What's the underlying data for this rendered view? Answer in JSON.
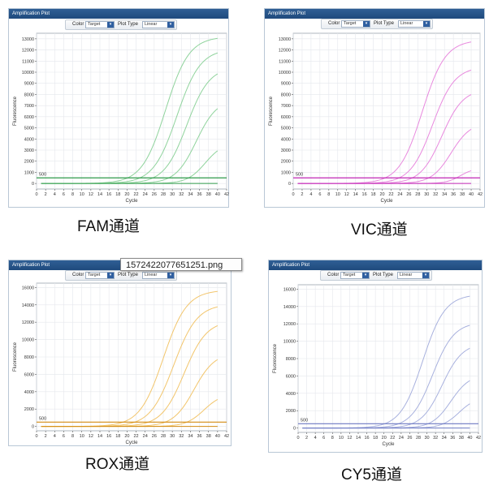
{
  "panels": [
    {
      "id": "fam",
      "window_title": "Amplification Plot",
      "caption": "FAM通道",
      "toolbar": {
        "color_label": "Color",
        "color_value": "Target",
        "plot_type_label": "Plot Type",
        "plot_type_value": "Linear"
      },
      "chart_data": {
        "type": "line",
        "title": "",
        "xlabel": "Cycle",
        "ylabel": "Fluorescence",
        "xlim": [
          0,
          42
        ],
        "ylim": [
          -500,
          13500
        ],
        "x_ticks": [
          0,
          2,
          4,
          6,
          8,
          10,
          12,
          14,
          16,
          18,
          20,
          22,
          24,
          26,
          28,
          30,
          32,
          34,
          36,
          38,
          40,
          42
        ],
        "x_tick_labels": [
          "0",
          "2",
          "4",
          "6",
          "8",
          "10",
          "12",
          "14",
          "16",
          "18",
          "20",
          "22",
          "24",
          "26",
          "28",
          "30",
          "32",
          "34",
          "36",
          "38",
          "40",
          "42"
        ],
        "y_ticks": [
          0,
          1000,
          2000,
          3000,
          4000,
          5000,
          6000,
          7000,
          8000,
          9000,
          10000,
          11000,
          12000,
          13000
        ],
        "y_tick_labels": [
          "0",
          "1000",
          "2000",
          "3000",
          "4000",
          "5000",
          "6000",
          "7000",
          "8000",
          "9000",
          "10000",
          "11000",
          "12000",
          "13000"
        ],
        "threshold": 500,
        "threshold_label": "500",
        "curve_color": "#8fd39c",
        "threshold_color": "#2e9a4a",
        "grid": true,
        "series": [
          {
            "name": "curve-1",
            "x_start": 1,
            "x_end": 40,
            "plateau": 13200,
            "midpoint": 28.5,
            "slope": 2.6
          },
          {
            "name": "curve-2",
            "x_start": 1,
            "x_end": 40,
            "plateau": 12100,
            "midpoint": 31.0,
            "slope": 2.6
          },
          {
            "name": "curve-3",
            "x_start": 1,
            "x_end": 40,
            "plateau": 10500,
            "midpoint": 33.2,
            "slope": 2.5
          },
          {
            "name": "curve-4",
            "x_start": 1,
            "x_end": 40,
            "plateau": 7600,
            "midpoint": 35.3,
            "slope": 2.3
          },
          {
            "name": "curve-5",
            "x_start": 1,
            "x_end": 40,
            "plateau": 3700,
            "midpoint": 37.3,
            "slope": 2.0
          }
        ]
      }
    },
    {
      "id": "vic",
      "window_title": "Amplification Plot",
      "caption": "VIC通道",
      "toolbar": {
        "color_label": "Color",
        "color_value": "Target",
        "plot_type_label": "Plot Type",
        "plot_type_value": "Linear"
      },
      "chart_data": {
        "type": "line",
        "title": "",
        "xlabel": "Cycle",
        "ylabel": "Fluorescence",
        "xlim": [
          0,
          42
        ],
        "ylim": [
          -500,
          13500
        ],
        "x_ticks": [
          0,
          2,
          4,
          6,
          8,
          10,
          12,
          14,
          16,
          18,
          20,
          22,
          24,
          26,
          28,
          30,
          32,
          34,
          36,
          38,
          40,
          42
        ],
        "x_tick_labels": [
          "0",
          "2",
          "4",
          "6",
          "8",
          "10",
          "12",
          "14",
          "16",
          "18",
          "20",
          "22",
          "24",
          "26",
          "28",
          "30",
          "32",
          "34",
          "36",
          "38",
          "40",
          "42"
        ],
        "y_ticks": [
          0,
          1000,
          2000,
          3000,
          4000,
          5000,
          6000,
          7000,
          8000,
          9000,
          10000,
          11000,
          12000,
          13000
        ],
        "y_tick_labels": [
          "0",
          "1000",
          "2000",
          "3000",
          "4000",
          "5000",
          "6000",
          "7000",
          "8000",
          "9000",
          "10000",
          "11000",
          "12000",
          "13000"
        ],
        "threshold": 500,
        "threshold_label": "500",
        "curve_color": "#e889de",
        "threshold_color": "#c026b4",
        "grid": true,
        "series": [
          {
            "name": "curve-1",
            "x_start": 1,
            "x_end": 40,
            "plateau": 12900,
            "midpoint": 29.0,
            "slope": 2.6
          },
          {
            "name": "curve-2",
            "x_start": 1,
            "x_end": 40,
            "plateau": 10500,
            "midpoint": 31.3,
            "slope": 2.5
          },
          {
            "name": "curve-3",
            "x_start": 1,
            "x_end": 40,
            "plateau": 8500,
            "midpoint": 33.4,
            "slope": 2.4
          },
          {
            "name": "curve-4",
            "x_start": 1,
            "x_end": 40,
            "plateau": 5500,
            "midpoint": 35.5,
            "slope": 2.2
          },
          {
            "name": "curve-5",
            "x_start": 1,
            "x_end": 40,
            "plateau": 1400,
            "midpoint": 37.6,
            "slope": 1.6
          }
        ]
      }
    },
    {
      "id": "rox",
      "window_title": "Amplification Plot",
      "caption": "ROX通道",
      "toolbar": {
        "color_label": "Color",
        "color_value": "Target",
        "plot_type_label": "Plot Type",
        "plot_type_value": "Linear"
      },
      "chart_data": {
        "type": "line",
        "title": "",
        "xlabel": "Cycle",
        "ylabel": "Fluorescence",
        "xlim": [
          0,
          42
        ],
        "ylim": [
          -500,
          16500
        ],
        "x_ticks": [
          0,
          2,
          4,
          6,
          8,
          10,
          12,
          14,
          16,
          18,
          20,
          22,
          24,
          26,
          28,
          30,
          32,
          34,
          36,
          38,
          40,
          42
        ],
        "x_tick_labels": [
          "0",
          "2",
          "4",
          "6",
          "8",
          "10",
          "12",
          "14",
          "16",
          "18",
          "20",
          "22",
          "24",
          "26",
          "28",
          "30",
          "32",
          "34",
          "36",
          "38",
          "40",
          "42"
        ],
        "y_ticks": [
          0,
          2000,
          4000,
          6000,
          8000,
          10000,
          12000,
          14000,
          16000
        ],
        "y_tick_labels": [
          "0",
          "2000",
          "4000",
          "6000",
          "8000",
          "10000",
          "12000",
          "14000",
          "16000"
        ],
        "threshold": 500,
        "threshold_label": "500",
        "curve_color": "#f2c56b",
        "threshold_color": "#d28a10",
        "grid": true,
        "series": [
          {
            "name": "curve-1",
            "x_start": 1,
            "x_end": 40,
            "plateau": 15700,
            "midpoint": 28.0,
            "slope": 2.6
          },
          {
            "name": "curve-2",
            "x_start": 1,
            "x_end": 40,
            "plateau": 14100,
            "midpoint": 30.3,
            "slope": 2.6
          },
          {
            "name": "curve-3",
            "x_start": 1,
            "x_end": 40,
            "plateau": 12200,
            "midpoint": 32.6,
            "slope": 2.5
          },
          {
            "name": "curve-4",
            "x_start": 1,
            "x_end": 40,
            "plateau": 8500,
            "midpoint": 34.8,
            "slope": 2.3
          },
          {
            "name": "curve-5",
            "x_start": 1,
            "x_end": 40,
            "plateau": 3800,
            "midpoint": 37.0,
            "slope": 2.0
          }
        ]
      }
    },
    {
      "id": "cy5",
      "window_title": "Amplification Plot",
      "caption": "CY5通道",
      "toolbar": {
        "color_label": "Color",
        "color_value": "Target",
        "plot_type_label": "Plot Type",
        "plot_type_value": "Linear"
      },
      "chart_data": {
        "type": "line",
        "title": "",
        "xlabel": "Cycle",
        "ylabel": "Fluorescence",
        "xlim": [
          0,
          42
        ],
        "ylim": [
          -500,
          16500
        ],
        "x_ticks": [
          0,
          2,
          4,
          6,
          8,
          10,
          12,
          14,
          16,
          18,
          20,
          22,
          24,
          26,
          28,
          30,
          32,
          34,
          36,
          38,
          40,
          42
        ],
        "x_tick_labels": [
          "0",
          "2",
          "4",
          "6",
          "8",
          "10",
          "12",
          "14",
          "16",
          "18",
          "20",
          "22",
          "24",
          "26",
          "28",
          "30",
          "32",
          "34",
          "36",
          "38",
          "40",
          "42"
        ],
        "y_ticks": [
          0,
          2000,
          4000,
          6000,
          8000,
          10000,
          12000,
          14000,
          16000
        ],
        "y_tick_labels": [
          "0",
          "2000",
          "4000",
          "6000",
          "8000",
          "10000",
          "12000",
          "14000",
          "16000"
        ],
        "threshold": 500,
        "threshold_label": "500",
        "curve_color": "#a8b1de",
        "threshold_color": "#6d79c2",
        "grid": true,
        "series": [
          {
            "name": "curve-1",
            "x_start": 1,
            "x_end": 40,
            "plateau": 15400,
            "midpoint": 29.0,
            "slope": 2.6
          },
          {
            "name": "curve-2",
            "x_start": 1,
            "x_end": 40,
            "plateau": 12200,
            "midpoint": 31.3,
            "slope": 2.5
          },
          {
            "name": "curve-3",
            "x_start": 1,
            "x_end": 40,
            "plateau": 9800,
            "midpoint": 33.5,
            "slope": 2.4
          },
          {
            "name": "curve-4",
            "x_start": 1,
            "x_end": 40,
            "plateau": 6200,
            "midpoint": 35.6,
            "slope": 2.2
          },
          {
            "name": "curve-5",
            "x_start": 1,
            "x_end": 40,
            "plateau": 3600,
            "midpoint": 37.5,
            "slope": 2.0
          }
        ]
      }
    }
  ],
  "tooltip": {
    "text": "1572422077651251.png"
  }
}
